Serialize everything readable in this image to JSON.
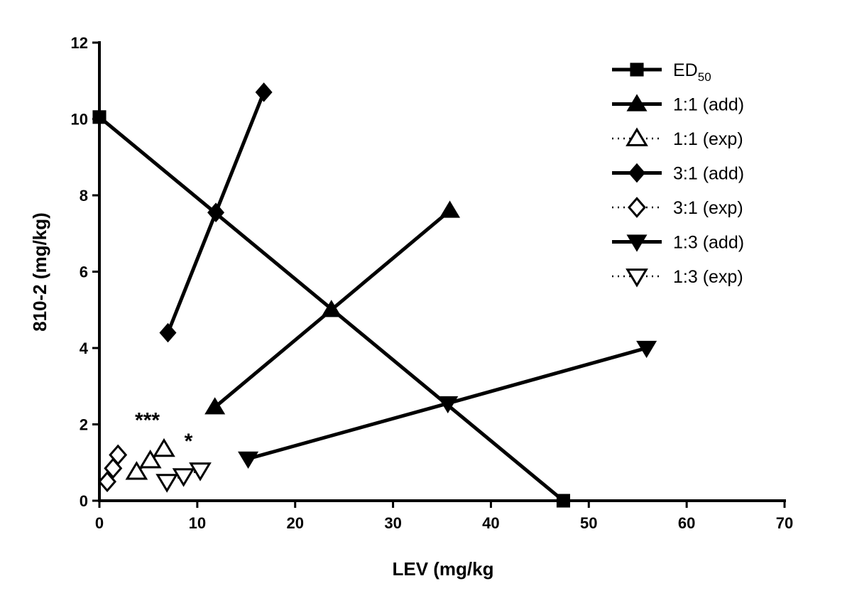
{
  "chart_data": {
    "type": "line",
    "title": "",
    "xlabel": "LEV (mg/kg",
    "ylabel": "810-2 (mg/kg)",
    "xlim": [
      0,
      70
    ],
    "ylim": [
      0,
      12
    ],
    "xticks": [
      0,
      10,
      20,
      30,
      40,
      50,
      60,
      70
    ],
    "yticks": [
      0,
      2,
      4,
      6,
      8,
      10,
      12
    ],
    "grid": false,
    "legend_position": "top-right",
    "series": [
      {
        "name": "ED50",
        "name_main": "ED",
        "name_sub": "50",
        "marker": "square",
        "filled": true,
        "line": "solid",
        "x": [
          0,
          47.4
        ],
        "y": [
          10.05,
          0
        ]
      },
      {
        "name": "1:1 (add)",
        "marker": "triangle-up",
        "filled": true,
        "line": "solid",
        "x": [
          11.8,
          23.7,
          35.8
        ],
        "y": [
          2.45,
          5.0,
          7.6
        ]
      },
      {
        "name": "1:1 (exp)",
        "marker": "triangle-up",
        "filled": false,
        "line": "dotted",
        "x": [
          3.8,
          5.2,
          6.6
        ],
        "y": [
          0.75,
          1.05,
          1.35
        ]
      },
      {
        "name": "3:1 (add)",
        "marker": "diamond",
        "filled": true,
        "line": "solid",
        "x": [
          7.0,
          11.9,
          16.8
        ],
        "y": [
          4.4,
          7.55,
          10.7
        ]
      },
      {
        "name": "3:1 (exp)",
        "marker": "diamond",
        "filled": false,
        "line": "dotted",
        "x": [
          0.8,
          1.4,
          1.9
        ],
        "y": [
          0.5,
          0.85,
          1.2
        ]
      },
      {
        "name": "1:3 (add)",
        "marker": "triangle-down",
        "filled": true,
        "line": "solid",
        "x": [
          15.2,
          35.6,
          55.9
        ],
        "y": [
          1.1,
          2.55,
          4.0
        ]
      },
      {
        "name": "1:3 (exp)",
        "marker": "triangle-down",
        "filled": false,
        "line": "dotted",
        "x": [
          6.9,
          8.6,
          10.3
        ],
        "y": [
          0.5,
          0.65,
          0.8
        ]
      }
    ],
    "annotations": [
      {
        "text": "***",
        "x": 4.9,
        "y": 2.15
      },
      {
        "text": "*",
        "x": 9.1,
        "y": 1.6
      }
    ]
  }
}
